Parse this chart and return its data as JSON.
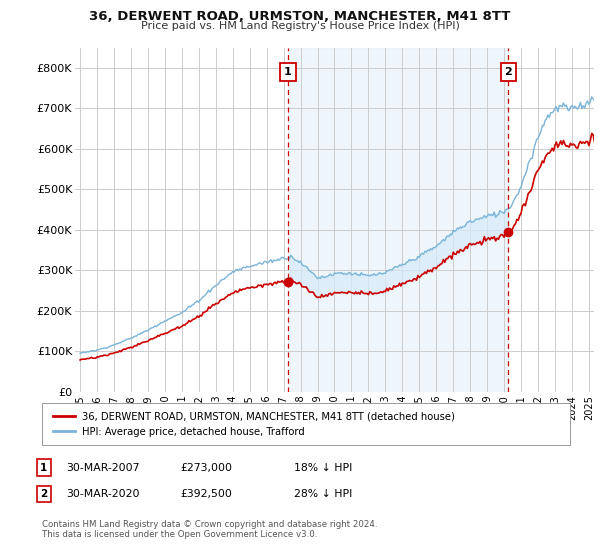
{
  "title": "36, DERWENT ROAD, URMSTON, MANCHESTER, M41 8TT",
  "subtitle": "Price paid vs. HM Land Registry's House Price Index (HPI)",
  "ylim": [
    0,
    850000
  ],
  "yticks": [
    0,
    100000,
    200000,
    300000,
    400000,
    500000,
    600000,
    700000,
    800000
  ],
  "ytick_labels": [
    "£0",
    "£100K",
    "£200K",
    "£300K",
    "£400K",
    "£500K",
    "£600K",
    "£700K",
    "£800K"
  ],
  "hpi_color": "#7ab4d8",
  "price_color": "#cc0000",
  "vline_color": "#cc0000",
  "grid_color": "#cccccc",
  "bg_color": "#ffffff",
  "fill_color": "#d6eaf8",
  "sale1_x": 2007.25,
  "sale1_y": 273000,
  "sale2_x": 2020.25,
  "sale2_y": 392500,
  "footnote": "Contains HM Land Registry data © Crown copyright and database right 2024.\nThis data is licensed under the Open Government Licence v3.0.",
  "legend1": "36, DERWENT ROAD, URMSTON, MANCHESTER, M41 8TT (detached house)",
  "legend2": "HPI: Average price, detached house, Trafford",
  "table_rows": [
    {
      "num": "1",
      "date": "30-MAR-2007",
      "price": "£273,000",
      "hpi": "18% ↓ HPI"
    },
    {
      "num": "2",
      "date": "30-MAR-2020",
      "price": "£392,500",
      "hpi": "28% ↓ HPI"
    }
  ],
  "xlim_start": 1994.7,
  "xlim_end": 2025.3
}
